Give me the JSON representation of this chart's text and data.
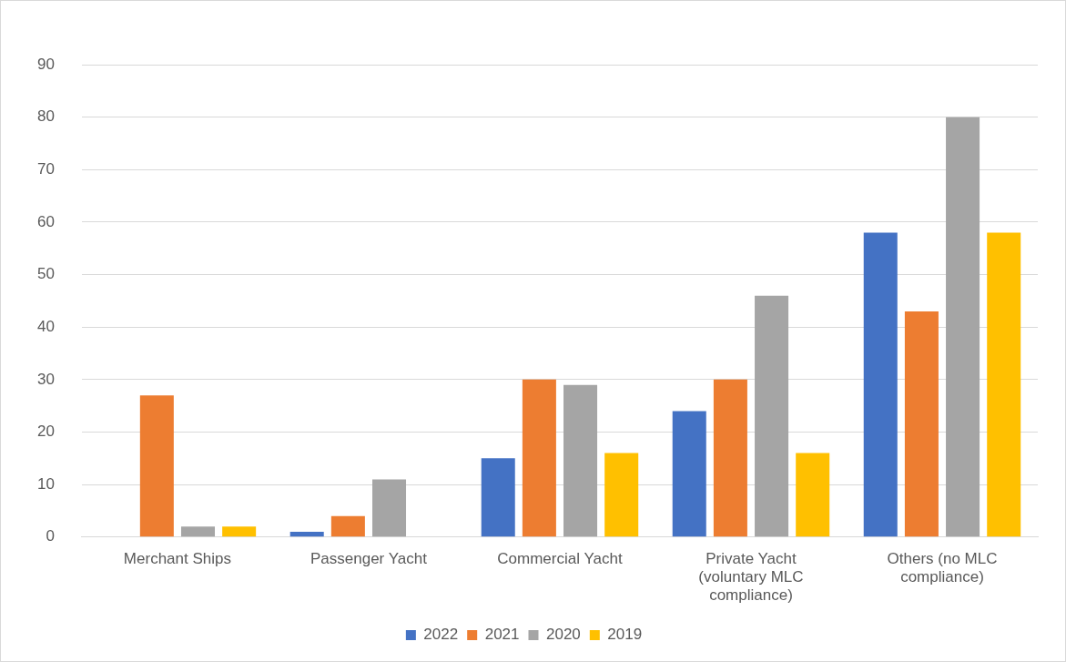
{
  "chart_data": {
    "type": "bar",
    "categories": [
      "Merchant Ships",
      "Passenger Yacht",
      "Commercial Yacht",
      "Private Yacht (voluntary MLC compliance)",
      "Others (no MLC compliance)"
    ],
    "series": [
      {
        "name": "2022",
        "color": "#4472c4",
        "values": [
          null,
          1,
          15,
          24,
          58
        ]
      },
      {
        "name": "2021",
        "color": "#ed7d31",
        "values": [
          27,
          4,
          30,
          30,
          43
        ]
      },
      {
        "name": "2020",
        "color": "#a5a5a5",
        "values": [
          2,
          11,
          29,
          46,
          80
        ]
      },
      {
        "name": "2019",
        "color": "#ffc000",
        "values": [
          2,
          null,
          16,
          16,
          58
        ]
      }
    ],
    "ylim": [
      0,
      90
    ],
    "yticks": [
      0,
      10,
      20,
      30,
      40,
      50,
      60,
      70,
      80,
      90
    ],
    "grid": "y",
    "legend": "bottom"
  }
}
